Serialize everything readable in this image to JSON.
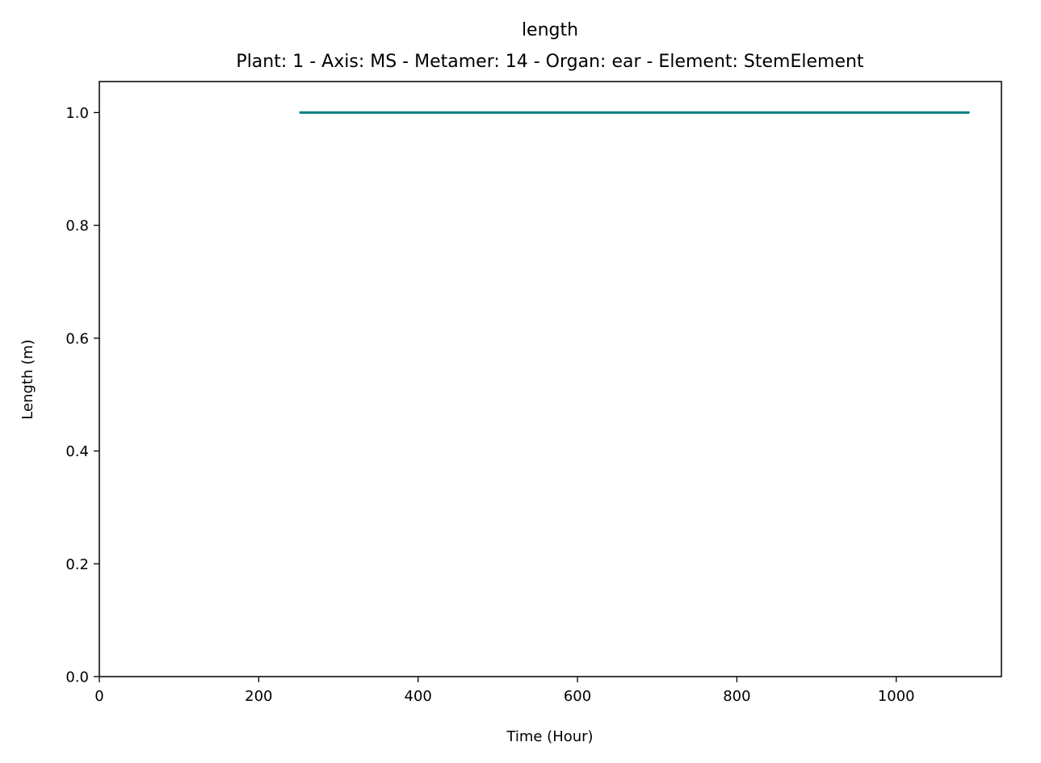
{
  "chart_data": {
    "type": "line",
    "title": "length",
    "subtitle": "Plant: 1 - Axis: MS - Metamer: 14 - Organ: ear - Element: StemElement",
    "xlabel": "Time (Hour)",
    "ylabel": "Length (m)",
    "xlim": [
      0,
      1132
    ],
    "ylim": [
      0,
      1.055
    ],
    "xticks": [
      0,
      200,
      400,
      600,
      800,
      1000
    ],
    "xtick_labels": [
      "0",
      "200",
      "400",
      "600",
      "800",
      "1000"
    ],
    "yticks": [
      0.0,
      0.2,
      0.4,
      0.6,
      0.8,
      1.0
    ],
    "ytick_labels": [
      "0.0",
      "0.2",
      "0.4",
      "0.6",
      "0.8",
      "1.0"
    ],
    "grid": false,
    "series": [
      {
        "color": "#008080",
        "x": [
          251,
          1092
        ],
        "y": [
          1.0,
          1.0
        ]
      }
    ]
  }
}
